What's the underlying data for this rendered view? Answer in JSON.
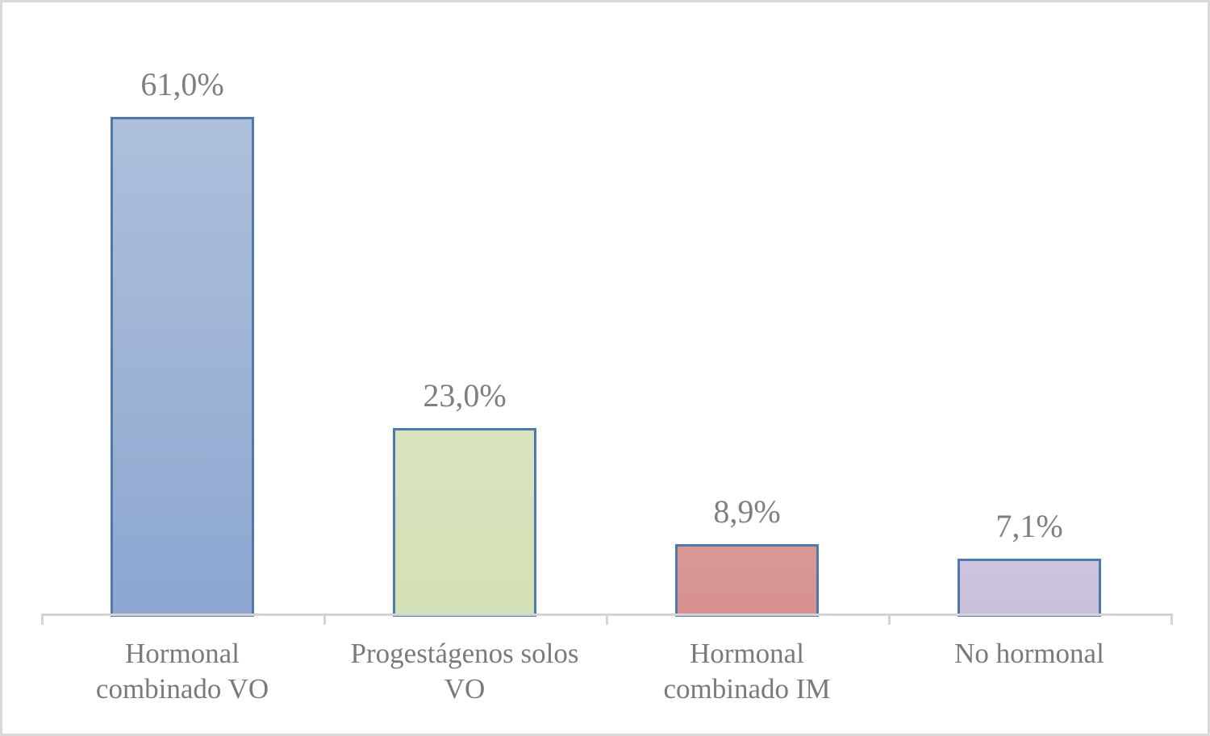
{
  "chart_data": {
    "type": "bar",
    "categories": [
      "Hormonal combinado VO",
      "Progestágenos solos VO",
      "Hormonal combinado IM",
      "No hormonal"
    ],
    "values": [
      61.0,
      23.0,
      8.9,
      7.1
    ],
    "value_labels": [
      "61,0%",
      "23,0%",
      "8,9%",
      "7,1%"
    ],
    "title": "",
    "xlabel": "",
    "ylabel": "",
    "ylim": [
      0,
      61
    ],
    "grid": false,
    "legend": false,
    "bar_fill_colors": [
      "#9db3d7",
      "#d7e3bc",
      "#d99694",
      "#ccc2dd"
    ],
    "bar_fill_gradients": [
      [
        "#aebfda",
        "#8da7d2"
      ],
      [
        "#d9e4bf",
        "#d4e0b7"
      ],
      [
        "#da9795",
        "#d79290"
      ],
      [
        "#cec4df",
        "#cabfd9"
      ]
    ],
    "bar_border_color": "#4d79ad",
    "data_label_color": "#7f7f7f",
    "category_label_color": "#7a7a7a",
    "axis_color": "#d4d4d4",
    "frame_border_color": "#d9d9d9",
    "background": "#ffffff"
  }
}
